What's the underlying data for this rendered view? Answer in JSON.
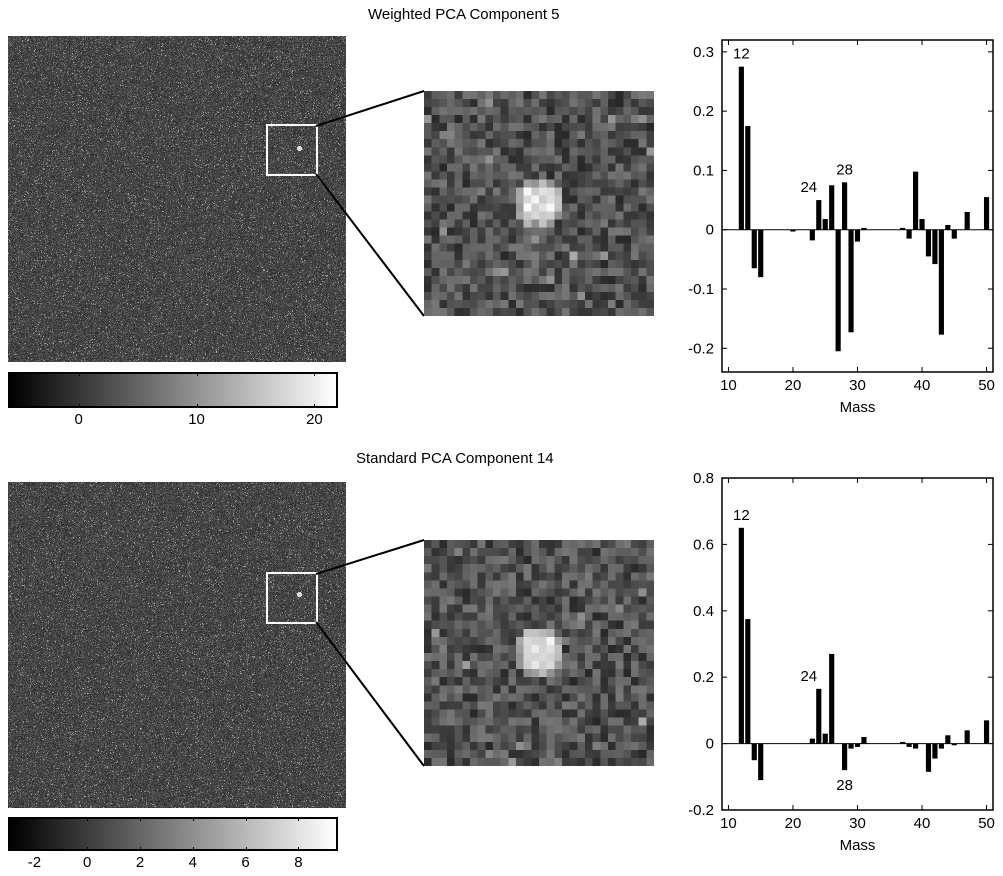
{
  "panels": [
    {
      "id": "weighted",
      "title": "Weighted PCA Component 5",
      "colorbar": {
        "min": -6,
        "max": 22,
        "ticks": [
          0,
          10,
          20
        ],
        "colormap": "grayscale"
      },
      "image": {
        "background": "#3a3a3a"
      }
    },
    {
      "id": "standard",
      "title": "Standard PCA Component 14",
      "colorbar": {
        "min": -3,
        "max": 9.5,
        "ticks": [
          -2,
          0,
          2,
          4,
          6,
          8
        ],
        "colormap": "grayscale"
      },
      "image": {
        "background": "#3a3a3a"
      }
    }
  ],
  "chart_data": [
    {
      "type": "bar",
      "title": "",
      "xlabel": "Mass",
      "ylabel": "",
      "xlim": [
        9,
        51
      ],
      "ylim": [
        -0.24,
        0.32
      ],
      "xticks": [
        10,
        20,
        30,
        40,
        50
      ],
      "yticks": [
        -0.2,
        -0.1,
        0,
        0.1,
        0.2,
        0.3
      ],
      "ytick_labels": [
        "-0.2",
        "-0.1",
        "0",
        "0.1",
        "0.2",
        "0.3"
      ],
      "grid": false,
      "bar_color": "#000000",
      "x": [
        12,
        13,
        14,
        15,
        20,
        23,
        24,
        25,
        26,
        27,
        28,
        29,
        30,
        31,
        37,
        38,
        39,
        40,
        41,
        42,
        43,
        44,
        45,
        47,
        50
      ],
      "values": [
        0.275,
        0.175,
        -0.065,
        -0.08,
        -0.003,
        -0.018,
        0.05,
        0.018,
        0.075,
        -0.205,
        0.08,
        -0.173,
        -0.02,
        0.003,
        0.003,
        -0.015,
        0.098,
        0.018,
        -0.045,
        -0.058,
        -0.177,
        0.008,
        -0.015,
        0.03,
        0.055
      ],
      "annotations": [
        {
          "text": "12",
          "x": 12,
          "y": 0.275
        },
        {
          "text": "24",
          "x": 24,
          "y": 0.05
        },
        {
          "text": "28",
          "x": 28,
          "y": 0.08
        }
      ]
    },
    {
      "type": "bar",
      "title": "",
      "xlabel": "Mass",
      "ylabel": "",
      "xlim": [
        9,
        51
      ],
      "ylim": [
        -0.2,
        0.8
      ],
      "xticks": [
        10,
        20,
        30,
        40,
        50
      ],
      "yticks": [
        -0.2,
        0,
        0.2,
        0.4,
        0.6,
        0.8
      ],
      "ytick_labels": [
        "-0.2",
        "0",
        "0.2",
        "0.4",
        "0.6",
        "0.8"
      ],
      "grid": false,
      "bar_color": "#000000",
      "x": [
        12,
        13,
        14,
        15,
        23,
        24,
        25,
        26,
        28,
        29,
        30,
        31,
        37,
        38,
        39,
        41,
        42,
        43,
        44,
        45,
        47,
        50
      ],
      "values": [
        0.65,
        0.375,
        -0.05,
        -0.11,
        0.015,
        0.165,
        0.03,
        0.27,
        -0.08,
        -0.015,
        -0.01,
        0.02,
        0.005,
        -0.01,
        -0.015,
        -0.085,
        -0.045,
        -0.015,
        0.025,
        -0.005,
        0.04,
        0.07
      ],
      "annotations": [
        {
          "text": "12",
          "x": 12,
          "y": 0.65
        },
        {
          "text": "24",
          "x": 24,
          "y": 0.165
        },
        {
          "text": "28",
          "x": 28,
          "y": -0.08
        }
      ]
    }
  ]
}
